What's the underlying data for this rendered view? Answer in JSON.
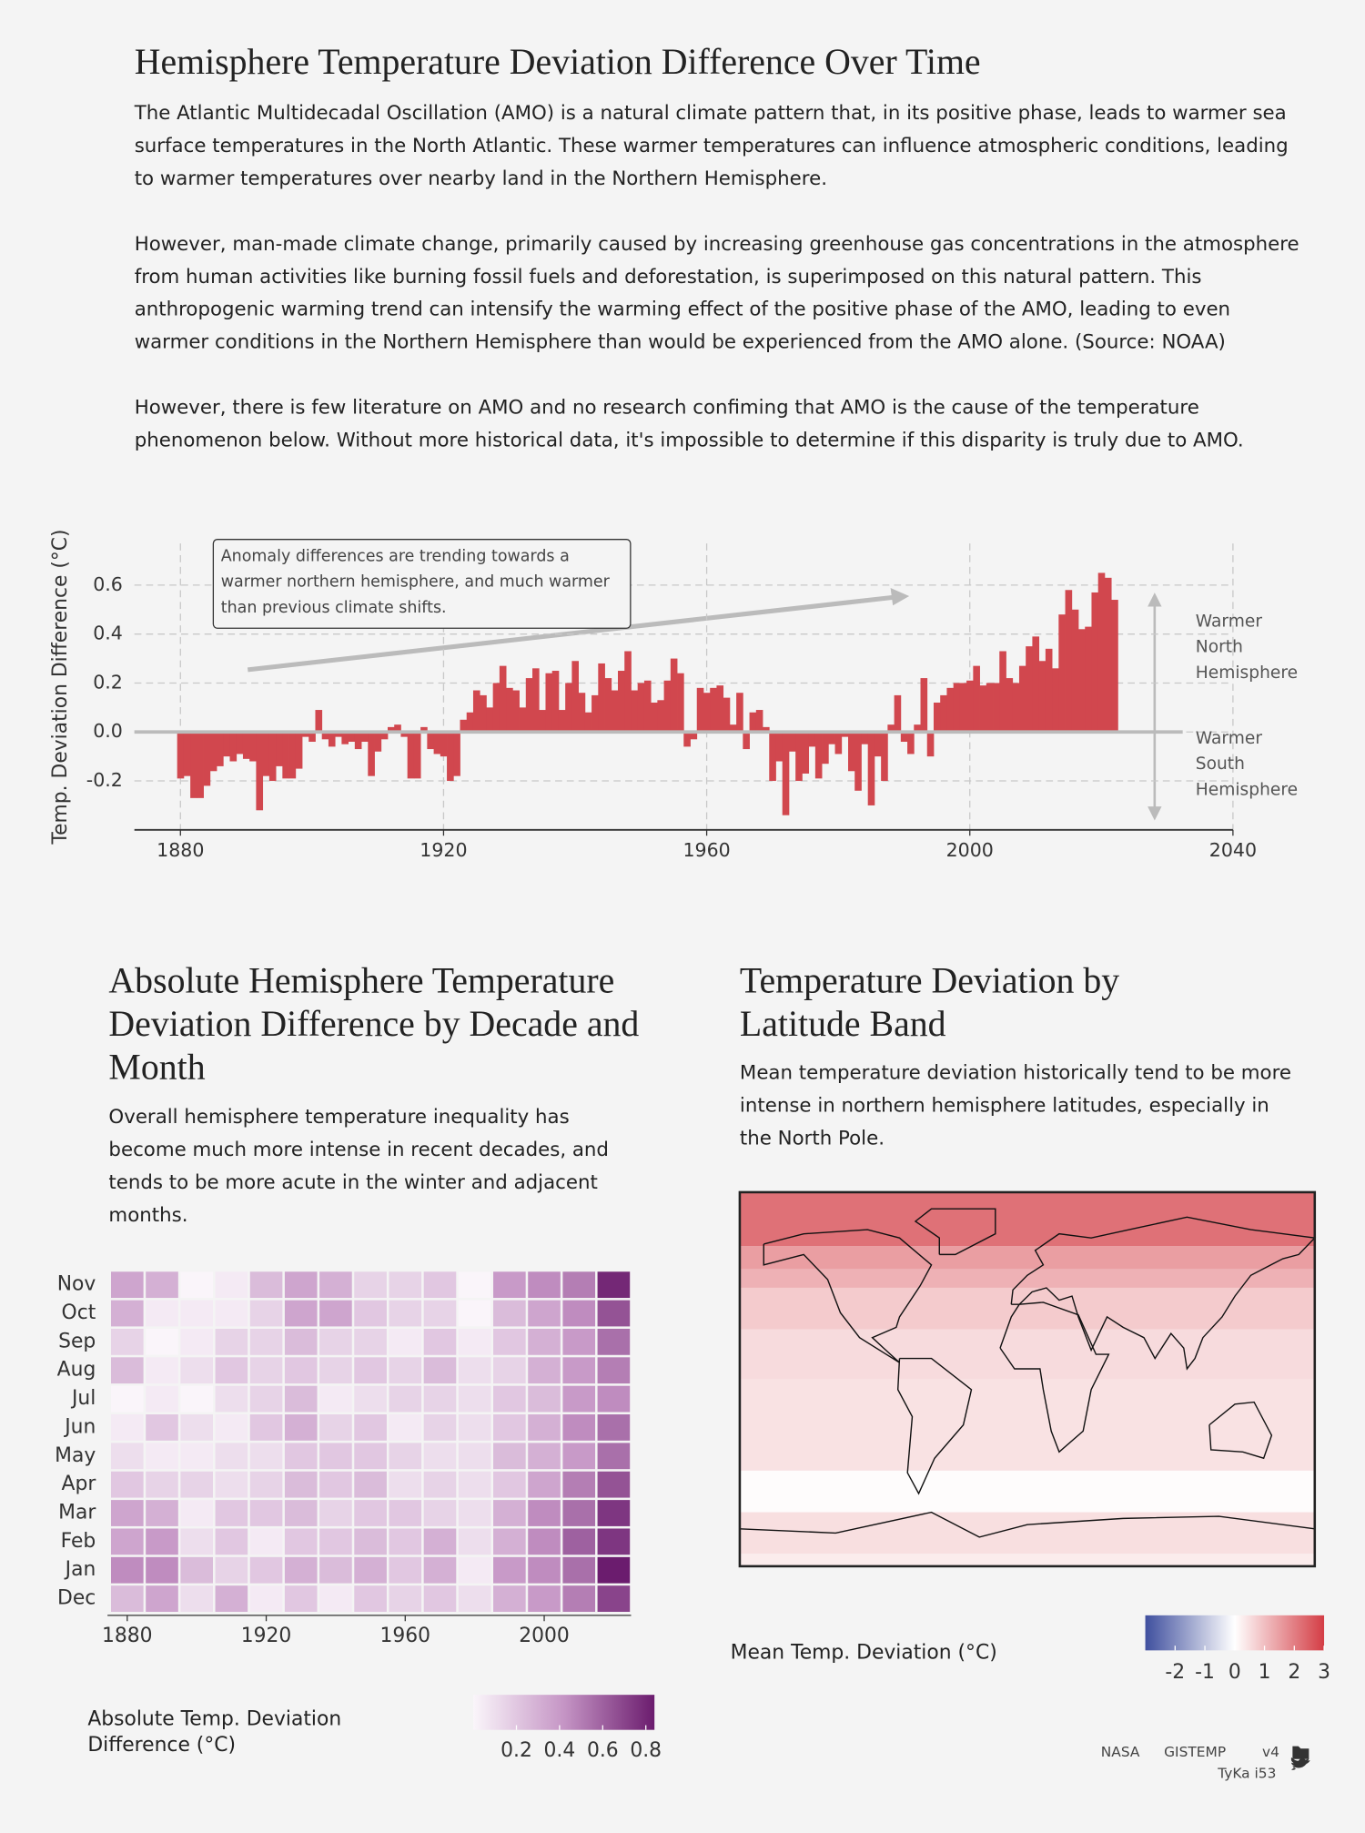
{
  "header": {
    "title": "Hemisphere Temperature Deviation Difference Over Time",
    "paragraphs": [
      "The Atlantic Multidecadal Oscillation (AMO) is a natural climate pattern that, in its positive phase, leads to warmer sea surface temperatures in the North Atlantic. These warmer temperatures can influence atmospheric conditions, leading to warmer temperatures over nearby land in the Northern Hemisphere.",
      "However, man-made climate change, primarily caused by increasing greenhouse gas concentrations in the atmosphere from human activities like burning fossil fuels and deforestation, is superimposed on this natural pattern. This anthropogenic warming trend can intensify the warming effect of the positive phase of the AMO, leading to even warmer conditions in the Northern Hemisphere than would be experienced from the AMO alone. (Source: NOAA)",
      "However, there is few literature on AMO and no research confiming that AMO is the cause of the temperature phenomenon below. Without more historical data, it's impossible to determine if this disparity is truly due to AMO."
    ]
  },
  "chart_data": [
    {
      "type": "bar",
      "y_label": "Temp. Deviation Difference (°C)",
      "annotation": "Anomaly differences are trending towards a warmer northern hemisphere, and much warmer than previous climate shifts.",
      "side_labels": [
        "Warmer North Hemisphere",
        "Warmer South Hemisphere"
      ],
      "color": "#d1474e",
      "grid": true,
      "x": [
        1880,
        1881,
        1882,
        1883,
        1884,
        1885,
        1886,
        1887,
        1888,
        1889,
        1890,
        1891,
        1892,
        1893,
        1894,
        1895,
        1896,
        1897,
        1898,
        1899,
        1900,
        1901,
        1902,
        1903,
        1904,
        1905,
        1906,
        1907,
        1908,
        1909,
        1910,
        1911,
        1912,
        1913,
        1914,
        1915,
        1916,
        1917,
        1918,
        1919,
        1920,
        1921,
        1922,
        1923,
        1924,
        1925,
        1926,
        1927,
        1928,
        1929,
        1930,
        1931,
        1932,
        1933,
        1934,
        1935,
        1936,
        1937,
        1938,
        1939,
        1940,
        1941,
        1942,
        1943,
        1944,
        1945,
        1946,
        1947,
        1948,
        1949,
        1950,
        1951,
        1952,
        1953,
        1954,
        1955,
        1956,
        1957,
        1958,
        1959,
        1960,
        1961,
        1962,
        1963,
        1964,
        1965,
        1966,
        1967,
        1968,
        1969,
        1970,
        1971,
        1972,
        1973,
        1974,
        1975,
        1976,
        1977,
        1978,
        1979,
        1980,
        1981,
        1982,
        1983,
        1984,
        1985,
        1986,
        1987,
        1988,
        1989,
        1990,
        1991,
        1992,
        1993,
        1994,
        1995,
        1996,
        1997,
        1998,
        1999,
        2000,
        2001,
        2002,
        2003,
        2004,
        2005,
        2006,
        2007,
        2008,
        2009,
        2010,
        2011,
        2012,
        2013,
        2014,
        2015,
        2016,
        2017,
        2018,
        2019,
        2020,
        2021,
        2022
      ],
      "values": [
        -0.19,
        -0.18,
        -0.27,
        -0.27,
        -0.22,
        -0.16,
        -0.14,
        -0.1,
        -0.12,
        -0.09,
        -0.11,
        -0.12,
        -0.32,
        -0.18,
        -0.2,
        -0.14,
        -0.19,
        -0.19,
        -0.15,
        -0.02,
        -0.04,
        0.09,
        -0.03,
        -0.06,
        -0.02,
        -0.05,
        -0.04,
        -0.07,
        -0.04,
        -0.18,
        -0.08,
        -0.03,
        0.02,
        0.03,
        -0.02,
        -0.19,
        -0.19,
        0.02,
        -0.07,
        -0.09,
        -0.1,
        -0.2,
        -0.18,
        0.05,
        0.08,
        0.17,
        0.15,
        0.1,
        0.2,
        0.27,
        0.18,
        0.17,
        0.1,
        0.22,
        0.26,
        0.09,
        0.24,
        0.25,
        0.09,
        0.2,
        0.29,
        0.16,
        0.08,
        0.15,
        0.28,
        0.22,
        0.17,
        0.25,
        0.33,
        0.17,
        0.2,
        0.21,
        0.12,
        0.13,
        0.21,
        0.3,
        0.24,
        -0.06,
        -0.03,
        0.18,
        0.16,
        0.18,
        0.19,
        0.14,
        0.03,
        0.16,
        -0.07,
        0.08,
        0.09,
        0.02,
        -0.2,
        -0.12,
        -0.34,
        -0.08,
        -0.2,
        -0.17,
        -0.06,
        -0.19,
        -0.13,
        -0.05,
        -0.09,
        -0.02,
        -0.16,
        -0.24,
        -0.05,
        -0.3,
        -0.1,
        -0.2,
        0.03,
        0.15,
        -0.04,
        -0.09,
        0.03,
        0.22,
        -0.1,
        0.12,
        0.15,
        0.18,
        0.2,
        0.2,
        0.21,
        0.27,
        0.19,
        0.2,
        0.2,
        0.33,
        0.22,
        0.2,
        0.27,
        0.35,
        0.39,
        0.29,
        0.34,
        0.26,
        0.48,
        0.58,
        0.5,
        0.42,
        0.43,
        0.57,
        0.65,
        0.63,
        0.54
      ],
      "xlim": [
        1873,
        2040
      ],
      "xticks": [
        1880,
        1920,
        1960,
        2000,
        2040
      ],
      "ylim": [
        -0.4,
        0.77
      ],
      "yticks": [
        -0.2,
        {
          "value": 0,
          "label": "0.0"
        },
        0.2,
        0.4,
        0.6
      ]
    },
    {
      "type": "heatmap",
      "title": "Absolute Hemisphere Temperature Deviation Difference by Decade and Month",
      "description": "Overall hemisphere temperature inequality has become much more intense in recent decades, and tends to be more acute in the winter and adjacent months.",
      "x": [
        1880,
        1890,
        1900,
        1910,
        1920,
        1930,
        1940,
        1950,
        1960,
        1970,
        1980,
        1990,
        2000,
        2010,
        2020
      ],
      "categories": [
        "Dec",
        "Jan",
        "Feb",
        "Mar",
        "Apr",
        "May",
        "Jun",
        "Jul",
        "Aug",
        "Sep",
        "Oct",
        "Nov"
      ],
      "z": [
        [
          0.25,
          0.35,
          0.1,
          0.3,
          0.05,
          0.2,
          0.05,
          0.2,
          0.15,
          0.2,
          0.1,
          0.3,
          0.4,
          0.5,
          0.7
        ],
        [
          0.45,
          0.45,
          0.25,
          0.15,
          0.2,
          0.3,
          0.25,
          0.3,
          0.2,
          0.3,
          0.05,
          0.4,
          0.45,
          0.55,
          0.85
        ],
        [
          0.35,
          0.4,
          0.1,
          0.2,
          0.05,
          0.2,
          0.2,
          0.25,
          0.2,
          0.3,
          0.1,
          0.3,
          0.45,
          0.6,
          0.75
        ],
        [
          0.35,
          0.3,
          0.05,
          0.2,
          0.2,
          0.25,
          0.15,
          0.2,
          0.2,
          0.15,
          0.1,
          0.3,
          0.45,
          0.55,
          0.75
        ],
        [
          0.2,
          0.15,
          0.15,
          0.1,
          0.15,
          0.25,
          0.2,
          0.25,
          0.1,
          0.15,
          0.1,
          0.2,
          0.35,
          0.5,
          0.65
        ],
        [
          0.1,
          0.05,
          0.05,
          0.1,
          0.1,
          0.2,
          0.2,
          0.2,
          0.15,
          0.1,
          0.1,
          0.25,
          0.3,
          0.4,
          0.55
        ],
        [
          0.05,
          0.2,
          0.1,
          0.05,
          0.2,
          0.3,
          0.15,
          0.2,
          0.05,
          0.15,
          0.1,
          0.2,
          0.3,
          0.45,
          0.55
        ],
        [
          0.0,
          0.05,
          0.0,
          0.1,
          0.15,
          0.25,
          0.05,
          0.1,
          0.15,
          0.15,
          0.1,
          0.2,
          0.25,
          0.4,
          0.45
        ],
        [
          0.25,
          0.05,
          0.1,
          0.2,
          0.15,
          0.2,
          0.15,
          0.2,
          0.15,
          0.25,
          0.1,
          0.15,
          0.3,
          0.4,
          0.5
        ],
        [
          0.15,
          0.0,
          0.05,
          0.15,
          0.15,
          0.25,
          0.15,
          0.15,
          0.05,
          0.2,
          0.05,
          0.2,
          0.3,
          0.4,
          0.55
        ],
        [
          0.3,
          0.05,
          0.05,
          0.05,
          0.15,
          0.35,
          0.35,
          0.2,
          0.15,
          0.15,
          0.0,
          0.25,
          0.35,
          0.45,
          0.65
        ],
        [
          0.35,
          0.3,
          0.0,
          0.05,
          0.25,
          0.35,
          0.3,
          0.15,
          0.15,
          0.2,
          0.0,
          0.4,
          0.45,
          0.5,
          0.8
        ]
      ],
      "xlim": [
        1875,
        2025
      ],
      "xticks": [
        1880,
        1920,
        1960,
        2000
      ],
      "colorbar": {
        "label": "Absolute Temp. Deviation Difference (°C)",
        "lim": [
          0,
          0.84
        ],
        "ticks": [
          0.2,
          0.4,
          0.6,
          0.8
        ],
        "colors": [
          "#faf5fa",
          "#c595c5",
          "#6b1c6e"
        ]
      }
    },
    {
      "type": "map",
      "title": "Temperature Deviation by Latitude Band",
      "description": "Mean temperature deviation historically tend to be more intense in northern hemisphere latitudes, especially in the North Pole.",
      "lat_edges": [
        90,
        64,
        53,
        44,
        24,
        0,
        -44,
        -64,
        -84,
        -90
      ],
      "values": [
        2.2,
        1.5,
        1.2,
        0.8,
        0.55,
        0.45,
        0.05,
        0.5,
        0.3
      ],
      "colorbar": {
        "label": "Mean Temp. Deviation (°C)",
        "lim": [
          -3,
          3
        ],
        "ticks": [
          -2,
          -1,
          0,
          1,
          2,
          3
        ],
        "colors": [
          "#3f4f9e",
          "#ffffff",
          "#d43d45"
        ]
      }
    }
  ],
  "footer": {
    "source": [
      "NASA",
      "GISTEMP",
      "v4"
    ],
    "author": "TyKa i53"
  }
}
